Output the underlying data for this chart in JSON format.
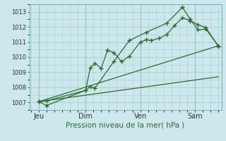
{
  "xlabel": "Pression niveau de la mer( hPa )",
  "bg_color": "#cce8ec",
  "grid_color": "#aacccc",
  "line_color": "#2d6a2d",
  "ylim": [
    1006.5,
    1013.5
  ],
  "xlim": [
    -0.1,
    12.2
  ],
  "xtick_labels": [
    "Jeu",
    "Dim",
    "Ven",
    "Sam"
  ],
  "xtick_positions": [
    0.5,
    3.5,
    7.0,
    10.5
  ],
  "vline_positions": [
    0.5,
    3.5,
    7.0,
    10.5
  ],
  "series1_x": [
    0.5,
    1.0,
    3.5,
    3.8,
    4.1,
    4.5,
    4.9,
    5.3,
    5.8,
    6.3,
    7.0,
    7.4,
    7.7,
    8.2,
    8.7,
    9.2,
    9.7,
    10.2,
    10.7,
    11.2,
    12.0
  ],
  "series1_y": [
    1007.05,
    1007.1,
    1007.8,
    1009.3,
    1009.6,
    1009.25,
    1010.45,
    1010.3,
    1009.7,
    1010.05,
    1011.0,
    1011.15,
    1011.1,
    1011.25,
    1011.5,
    1012.1,
    1012.6,
    1012.4,
    1012.15,
    1011.95,
    1010.7
  ],
  "series2_x": [
    0.5,
    1.0,
    3.5,
    3.8,
    4.1,
    5.3,
    6.3,
    7.4,
    8.7,
    9.7,
    10.2,
    10.7,
    11.2,
    12.0
  ],
  "series2_y": [
    1007.05,
    1006.8,
    1007.8,
    1008.05,
    1007.95,
    1009.7,
    1011.1,
    1011.65,
    1012.25,
    1013.3,
    1012.5,
    1011.8,
    1011.85,
    1010.75
  ],
  "trend1_x": [
    0.5,
    12.0
  ],
  "trend1_y": [
    1007.05,
    1010.75
  ],
  "trend2_x": [
    0.5,
    12.0
  ],
  "trend2_y": [
    1007.05,
    1008.7
  ],
  "yticks": [
    1007,
    1008,
    1009,
    1010,
    1011,
    1012,
    1013
  ]
}
